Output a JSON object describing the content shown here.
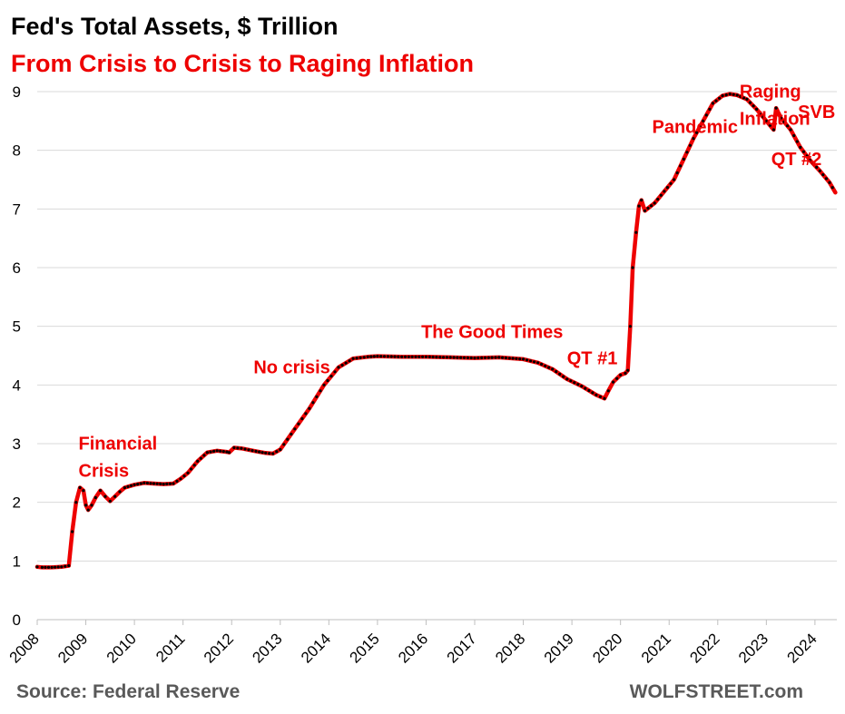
{
  "title": "Fed's Total Assets, $ Trillion",
  "subtitle": "From Crisis to Crisis to Raging Inflation",
  "source": "Source: Federal Reserve",
  "credit": "WOLFSTREET.com",
  "colors": {
    "line": "#ee0000",
    "markers": "#000000",
    "grid": "#d9d9d9",
    "accent": "#ee0000",
    "footer": "#595959"
  },
  "chart_data": {
    "type": "line",
    "title": "Fed's Total Assets, $ Trillion",
    "subtitle": "From Crisis to Crisis to Raging Inflation",
    "xlabel": "",
    "ylabel": "",
    "xlim": [
      2008.0,
      2024.45
    ],
    "ylim": [
      0,
      9
    ],
    "grid": "horizontal",
    "legend": "none",
    "y_ticks": [
      "0",
      "1",
      "2",
      "3",
      "4",
      "5",
      "6",
      "7",
      "8",
      "9"
    ],
    "x_ticks": [
      "2008",
      "2009",
      "2010",
      "2011",
      "2012",
      "2013",
      "2014",
      "2015",
      "2016",
      "2017",
      "2018",
      "2019",
      "2020",
      "2021",
      "2022",
      "2023",
      "2024"
    ],
    "annotations": [
      {
        "lines": [
          "Financial",
          "Crisis"
        ],
        "x": 2008.85,
        "y": 2.9
      },
      {
        "lines": [
          "No crisis"
        ],
        "x": 2012.45,
        "y": 4.2
      },
      {
        "lines": [
          "The Good Times"
        ],
        "x": 2015.9,
        "y": 4.8
      },
      {
        "lines": [
          "QT #1"
        ],
        "x": 2018.9,
        "y": 4.35
      },
      {
        "lines": [
          "Pandemic"
        ],
        "x": 2020.65,
        "y": 8.3
      },
      {
        "lines": [
          "Raging",
          "Inflation"
        ],
        "x": 2022.45,
        "y": 8.9
      },
      {
        "lines": [
          "SVB"
        ],
        "x": 2023.65,
        "y": 8.55
      },
      {
        "lines": [
          "QT #2"
        ],
        "x": 2023.1,
        "y": 7.75
      }
    ],
    "series": [
      {
        "x": [
          2008.0,
          2008.1,
          2008.3,
          2008.5,
          2008.65,
          2008.72,
          2008.8,
          2008.88,
          2008.95,
          2009.0,
          2009.05,
          2009.12,
          2009.2,
          2009.3,
          2009.4,
          2009.5,
          2009.6,
          2009.7,
          2009.8,
          2010.0,
          2010.2,
          2010.4,
          2010.6,
          2010.8,
          2010.95,
          2011.1,
          2011.3,
          2011.5,
          2011.7,
          2011.9,
          2011.95,
          2012.05,
          2012.2,
          2012.5,
          2012.7,
          2012.85,
          2013.0,
          2013.3,
          2013.6,
          2013.9,
          2014.2,
          2014.5,
          2014.8,
          2015.0,
          2015.5,
          2016.0,
          2016.5,
          2017.0,
          2017.5,
          2018.0,
          2018.3,
          2018.6,
          2018.9,
          2019.2,
          2019.5,
          2019.67,
          2019.75,
          2019.85,
          2020.0,
          2020.1,
          2020.15,
          2020.2,
          2020.25,
          2020.32,
          2020.38,
          2020.43,
          2020.5,
          2020.7,
          2020.9,
          2021.1,
          2021.3,
          2021.5,
          2021.7,
          2021.9,
          2022.1,
          2022.25,
          2022.4,
          2022.6,
          2022.8,
          2023.0,
          2023.15,
          2023.2,
          2023.3,
          2023.5,
          2023.7,
          2023.9,
          2024.1,
          2024.3,
          2024.42
        ],
        "y": [
          0.9,
          0.89,
          0.89,
          0.9,
          0.92,
          1.5,
          2.0,
          2.25,
          2.2,
          1.95,
          1.87,
          1.95,
          2.08,
          2.2,
          2.1,
          2.02,
          2.1,
          2.18,
          2.25,
          2.3,
          2.33,
          2.32,
          2.31,
          2.32,
          2.4,
          2.5,
          2.7,
          2.85,
          2.88,
          2.86,
          2.85,
          2.93,
          2.92,
          2.87,
          2.84,
          2.83,
          2.9,
          3.25,
          3.6,
          4.0,
          4.3,
          4.45,
          4.48,
          4.49,
          4.48,
          4.48,
          4.47,
          4.46,
          4.47,
          4.44,
          4.38,
          4.27,
          4.1,
          3.98,
          3.83,
          3.77,
          3.9,
          4.05,
          4.17,
          4.2,
          4.25,
          5.0,
          6.0,
          6.6,
          7.05,
          7.15,
          6.97,
          7.1,
          7.3,
          7.5,
          7.85,
          8.2,
          8.5,
          8.8,
          8.93,
          8.96,
          8.94,
          8.87,
          8.7,
          8.5,
          8.35,
          8.72,
          8.55,
          8.35,
          8.05,
          7.83,
          7.65,
          7.45,
          7.28
        ]
      }
    ]
  }
}
